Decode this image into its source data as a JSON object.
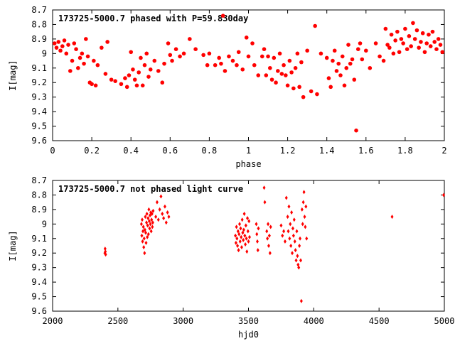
{
  "colors": {
    "points": "#ff0000",
    "axes": "#000000",
    "background": "#ffffff"
  },
  "chart_data": [
    {
      "type": "scatter",
      "title": "173725-5000.7 phased with P=59.830day",
      "xlabel": "phase",
      "ylabel": "I[mag]",
      "xlim": [
        0,
        2
      ],
      "ylim": [
        9.6,
        8.7
      ],
      "y_inverted": true,
      "grid": false,
      "x_ticks": [
        "0",
        "0.2",
        "0.4",
        "0.6",
        "0.8",
        "1",
        "1.2",
        "1.4",
        "1.6",
        "1.8",
        "2"
      ],
      "y_ticks": [
        "8.7",
        "8.8",
        "8.9",
        "9",
        "9.1",
        "9.2",
        "9.3",
        "9.4",
        "9.5",
        "9.6"
      ],
      "marker": "filled-circle",
      "series": [
        {
          "x": [
            0.01,
            0.02,
            0.03,
            0.04,
            0.05,
            0.06,
            0.07,
            0.08,
            0.09,
            0.1,
            0.11,
            0.12,
            0.13,
            0.14,
            0.15,
            0.16,
            0.17,
            0.18,
            0.19,
            0.2,
            0.21,
            0.22,
            0.23,
            0.25,
            0.27,
            0.28,
            0.3,
            0.32,
            0.35,
            0.37,
            0.38,
            0.39,
            0.4,
            0.41,
            0.42,
            0.43,
            0.44,
            0.45,
            0.46,
            0.47,
            0.48,
            0.49,
            0.5,
            0.52,
            0.54,
            0.56,
            0.57,
            0.59,
            0.6,
            0.61,
            0.63,
            0.65,
            0.67,
            0.7,
            0.73,
            0.77,
            0.79,
            0.8,
            0.83,
            0.85,
            0.86,
            0.87,
            0.88,
            0.9,
            0.92,
            0.94,
            0.95,
            0.97,
            0.99,
            1.0,
            1.02,
            1.03,
            1.05,
            1.07,
            1.08,
            1.09,
            1.1,
            1.11,
            1.12,
            1.13,
            1.14,
            1.15,
            1.16,
            1.17,
            1.18,
            1.19,
            1.2,
            1.21,
            1.22,
            1.23,
            1.24,
            1.25,
            1.26,
            1.27,
            1.28,
            1.3,
            1.32,
            1.34,
            1.35,
            1.37,
            1.4,
            1.41,
            1.42,
            1.43,
            1.44,
            1.45,
            1.46,
            1.47,
            1.48,
            1.49,
            1.5,
            1.51,
            1.52,
            1.53,
            1.54,
            1.55,
            1.56,
            1.57,
            1.58,
            1.6,
            1.62,
            1.65,
            1.67,
            1.69,
            1.7,
            1.71,
            1.72,
            1.73,
            1.74,
            1.75,
            1.76,
            1.77,
            1.78,
            1.79,
            1.8,
            1.81,
            1.82,
            1.83,
            1.84,
            1.85,
            1.86,
            1.87,
            1.88,
            1.89,
            1.9,
            1.91,
            1.92,
            1.93,
            1.94,
            1.95,
            1.96,
            1.97,
            1.98,
            1.99
          ],
          "y": [
            8.93,
            8.96,
            8.92,
            8.98,
            8.95,
            8.91,
            9.0,
            8.94,
            9.12,
            9.05,
            8.93,
            8.97,
            9.1,
            9.03,
            9.0,
            9.07,
            8.9,
            9.02,
            9.2,
            9.21,
            9.05,
            9.22,
            9.08,
            8.96,
            9.14,
            8.92,
            9.18,
            9.19,
            9.21,
            9.17,
            9.23,
            9.15,
            8.99,
            9.11,
            9.18,
            9.22,
            9.13,
            9.03,
            9.22,
            9.08,
            9.0,
            9.16,
            9.11,
            9.05,
            9.12,
            9.2,
            9.07,
            8.93,
            9.01,
            9.05,
            8.97,
            9.02,
            9.0,
            8.9,
            8.97,
            9.01,
            9.08,
            9.0,
            9.08,
            9.03,
            9.07,
            8.74,
            9.12,
            9.02,
            9.05,
            9.08,
            8.99,
            9.11,
            8.89,
            9.02,
            8.93,
            9.08,
            9.15,
            9.02,
            8.97,
            9.15,
            9.02,
            9.1,
            9.18,
            9.03,
            9.2,
            9.12,
            9.0,
            9.14,
            9.08,
            9.15,
            9.22,
            9.05,
            9.13,
            9.24,
            9.1,
            9.0,
            9.23,
            9.06,
            9.3,
            8.98,
            9.26,
            8.81,
            9.28,
            9.0,
            9.03,
            9.17,
            9.23,
            9.05,
            8.98,
            9.12,
            9.07,
            9.15,
            9.02,
            9.22,
            9.1,
            8.94,
            9.07,
            9.04,
            9.18,
            9.53,
            8.97,
            8.93,
            9.04,
            8.98,
            9.1,
            8.93,
            9.02,
            9.05,
            8.83,
            8.94,
            8.96,
            8.87,
            9.0,
            8.91,
            8.85,
            8.99,
            8.9,
            8.93,
            8.83,
            8.97,
            8.88,
            8.95,
            8.79,
            8.9,
            8.84,
            8.96,
            8.92,
            8.86,
            8.99,
            8.93,
            8.87,
            8.95,
            8.85,
            8.92,
            8.97,
            8.9,
            8.94,
            8.99
          ]
        }
      ]
    },
    {
      "type": "scatter",
      "title": "173725-5000.7 not phased light curve",
      "xlabel": "hjd0",
      "ylabel": "I[mag]",
      "xlim": [
        2000,
        5000
      ],
      "ylim": [
        9.6,
        8.7
      ],
      "y_inverted": true,
      "grid": false,
      "x_ticks": [
        "2000",
        "2500",
        "3000",
        "3500",
        "4000",
        "4500",
        "5000"
      ],
      "y_ticks": [
        "8.7",
        "8.8",
        "8.9",
        "9",
        "9.1",
        "9.2",
        "9.3",
        "9.4",
        "9.5",
        "9.6"
      ],
      "marker": "small-diamond",
      "series": [
        {
          "x": [
            2400,
            2402,
            2404,
            2406,
            2680,
            2683,
            2686,
            2689,
            2692,
            2695,
            2698,
            2701,
            2704,
            2707,
            2710,
            2713,
            2716,
            2719,
            2722,
            2725,
            2728,
            2731,
            2734,
            2737,
            2740,
            2743,
            2746,
            2749,
            2752,
            2755,
            2758,
            2761,
            2764,
            2767,
            2770,
            2790,
            2800,
            2810,
            2820,
            2830,
            2840,
            2850,
            2860,
            2870,
            2880,
            2890,
            3400,
            3404,
            3408,
            3412,
            3416,
            3420,
            3424,
            3428,
            3432,
            3436,
            3440,
            3444,
            3448,
            3452,
            3456,
            3460,
            3464,
            3468,
            3472,
            3476,
            3480,
            3484,
            3488,
            3492,
            3496,
            3500,
            3504,
            3508,
            3560,
            3564,
            3568,
            3572,
            3576,
            3620,
            3625,
            3640,
            3645,
            3650,
            3655,
            3660,
            3665,
            3670,
            3750,
            3760,
            3770,
            3780,
            3790,
            3800,
            3805,
            3810,
            3815,
            3820,
            3825,
            3830,
            3835,
            3840,
            3845,
            3850,
            3855,
            3860,
            3865,
            3870,
            3875,
            3880,
            3885,
            3890,
            3895,
            3900,
            3905,
            3910,
            3915,
            3920,
            3925,
            3930,
            3935,
            3940,
            3945,
            4600,
            4995
          ],
          "y": [
            9.2,
            9.17,
            9.19,
            9.21,
            9.0,
            9.08,
            8.97,
            9.12,
            9.05,
            9.02,
            9.16,
            9.1,
            9.2,
            9.04,
            8.95,
            9.06,
            9.13,
            8.99,
            8.93,
            9.09,
            9.01,
            8.96,
            9.07,
            8.9,
            8.98,
            9.03,
            8.94,
            9.0,
            8.92,
            9.05,
            8.97,
            8.93,
            9.02,
            8.99,
            8.91,
            8.95,
            8.85,
            8.97,
            8.9,
            8.81,
            8.93,
            8.96,
            8.88,
            8.99,
            8.92,
            8.95,
            9.08,
            9.13,
            9.02,
            9.1,
            9.15,
            9.05,
            9.18,
            9.07,
            9.0,
            9.12,
            9.03,
            9.09,
            9.16,
            8.97,
            9.06,
            9.11,
            9.04,
            8.93,
            9.08,
            9.14,
            9.01,
            9.1,
            9.19,
            8.96,
            9.05,
            9.12,
            8.98,
            9.09,
            9.0,
            9.07,
            9.12,
            9.18,
            9.03,
            8.75,
            8.85,
            9.05,
            9.1,
            9.0,
            9.15,
            9.08,
            9.2,
            9.02,
            9.01,
            9.08,
            9.05,
            9.12,
            8.82,
            8.95,
            9.05,
            8.88,
            9.1,
            9.0,
            9.15,
            8.92,
            9.2,
            9.03,
            9.08,
            8.97,
            9.12,
            9.18,
            9.25,
            9.05,
            9.22,
            9.28,
            9.3,
            9.15,
            9.1,
            9.25,
            9.53,
            8.9,
            9.0,
            8.85,
            8.78,
            8.95,
            9.02,
            8.88,
            9.1,
            8.95,
            8.8
          ]
        }
      ]
    }
  ]
}
